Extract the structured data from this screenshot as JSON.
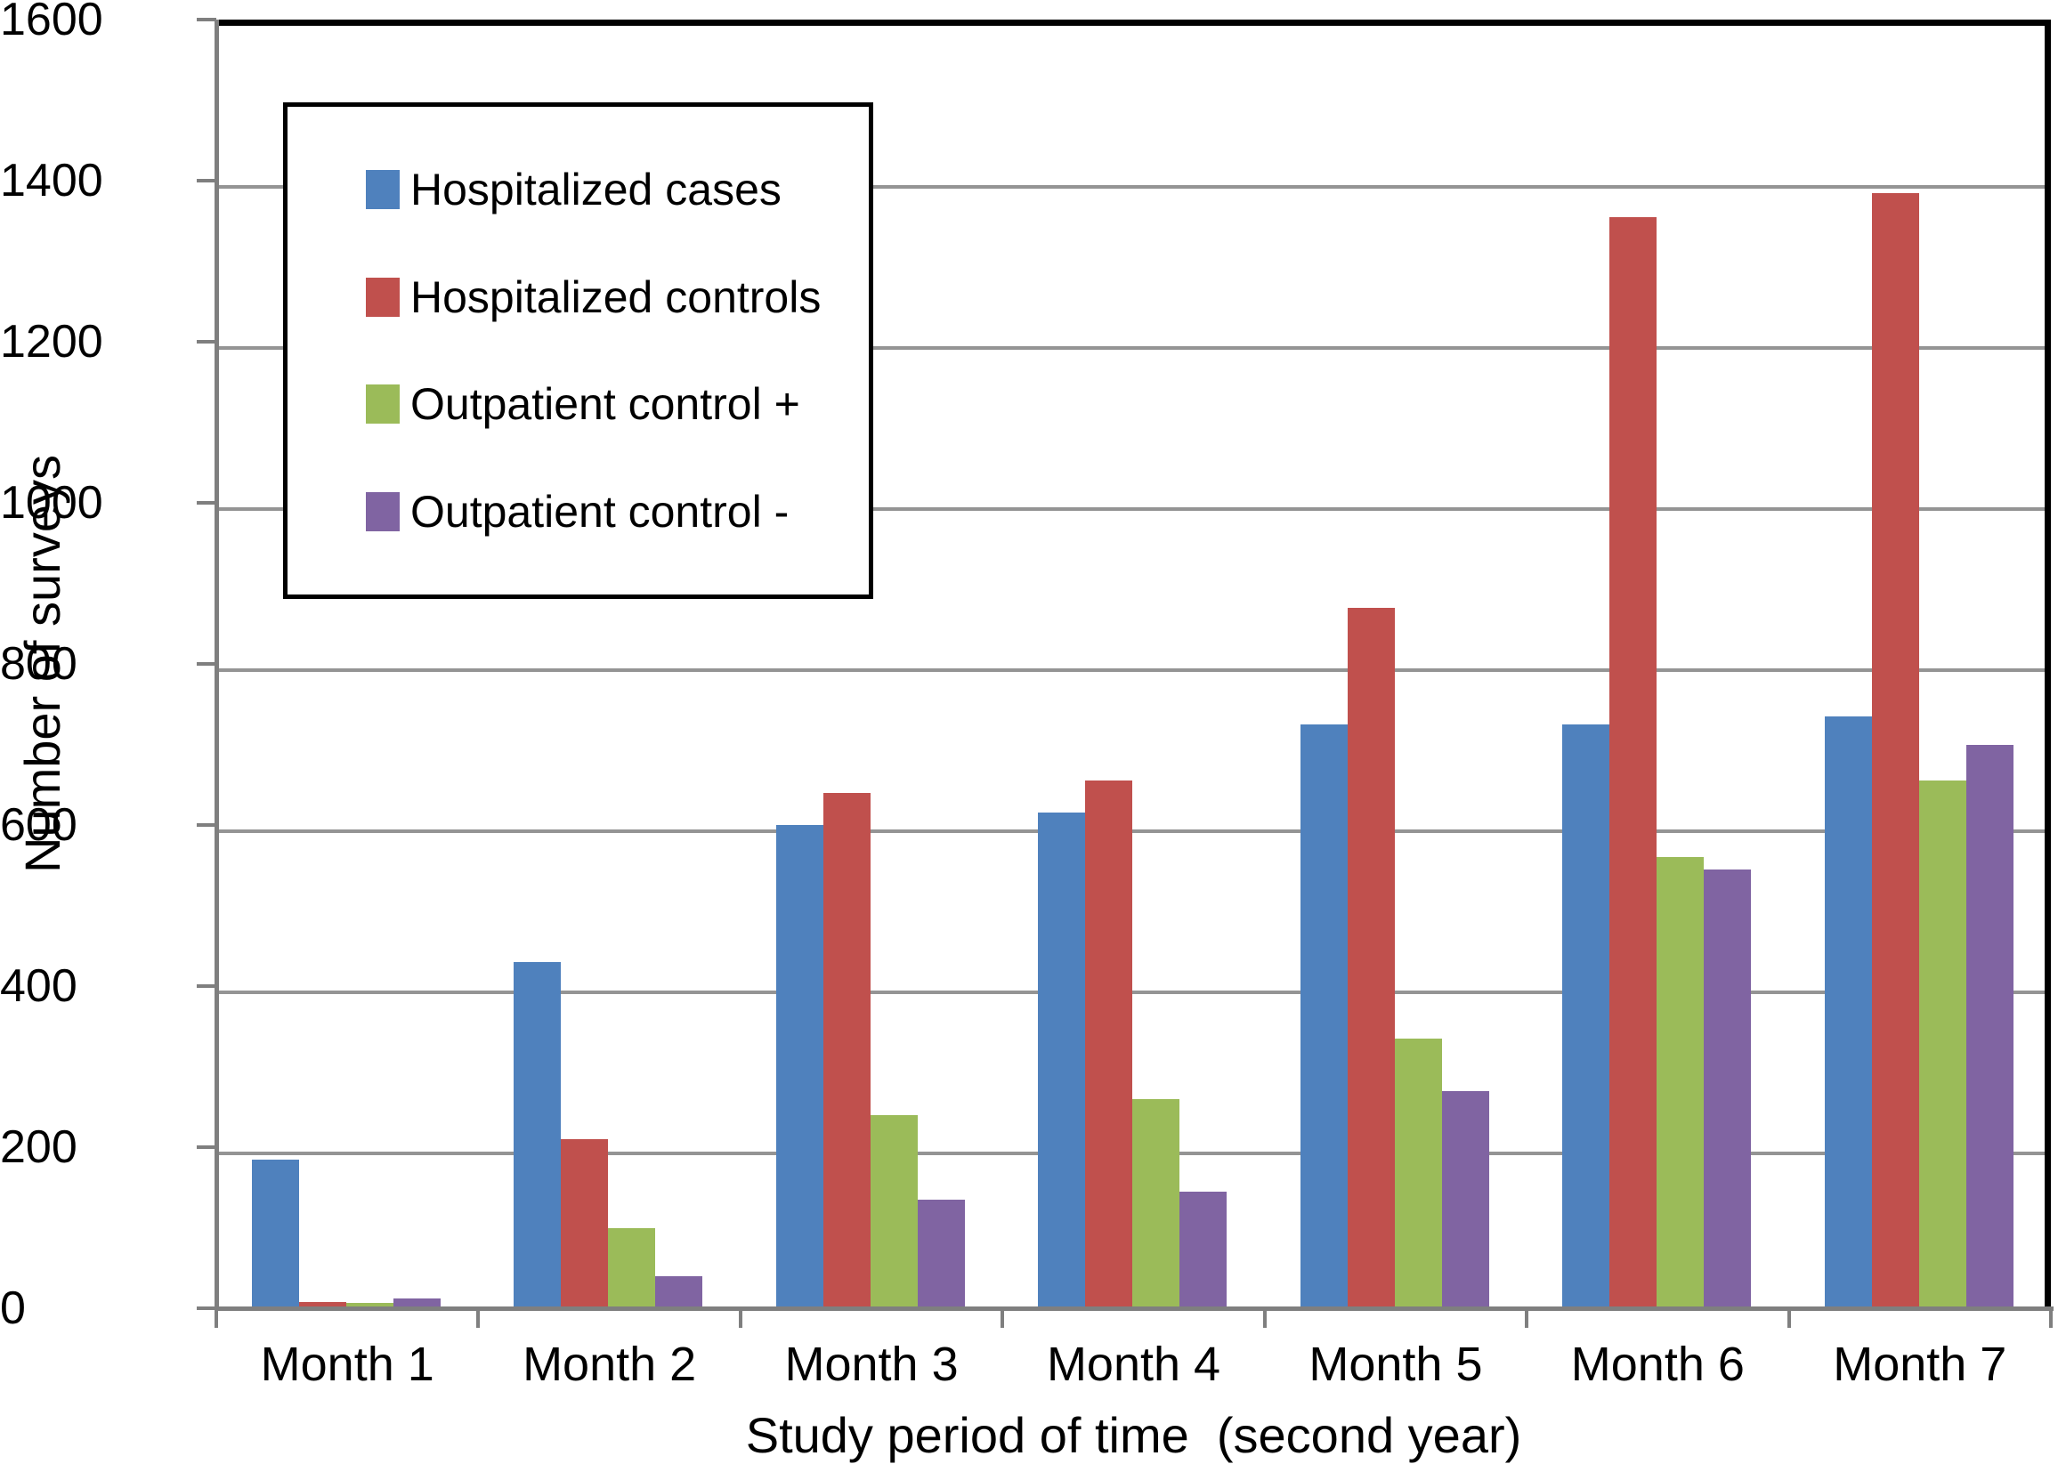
{
  "figure": {
    "y_axis_title": "Number of surveys",
    "x_axis_title": "Study period of time  (second year)"
  },
  "chart_data": {
    "type": "bar",
    "title": "",
    "xlabel": "Study period of time  (second year)",
    "ylabel": "Number of surveys",
    "categories": [
      "Month 1",
      "Month 2",
      "Month 3",
      "Month 4",
      "Month 5",
      "Month 6",
      "Month 7"
    ],
    "series": [
      {
        "name": "Hospitalized cases",
        "color": "#4F81BD",
        "values": [
          185,
          430,
          600,
          615,
          725,
          725,
          735
        ]
      },
      {
        "name": "Hospitalized controls",
        "color": "#C0504D",
        "values": [
          8,
          210,
          640,
          655,
          870,
          1355,
          1385
        ]
      },
      {
        "name": "Outpatient control +",
        "color": "#9BBB59",
        "values": [
          7,
          100,
          240,
          260,
          335,
          560,
          655
        ]
      },
      {
        "name": "Outpatient control -",
        "color": "#8064A2",
        "values": [
          12,
          40,
          135,
          145,
          270,
          545,
          700
        ]
      }
    ],
    "ylim": [
      0,
      1600
    ],
    "ytick_step": 200,
    "grid": "horizontal",
    "legend_position": "upper-left-inside",
    "colors": {
      "gridline": "#949494",
      "axis": "#7F7F7F",
      "plot_border": "#000000",
      "background": "#FFFFFF"
    }
  }
}
